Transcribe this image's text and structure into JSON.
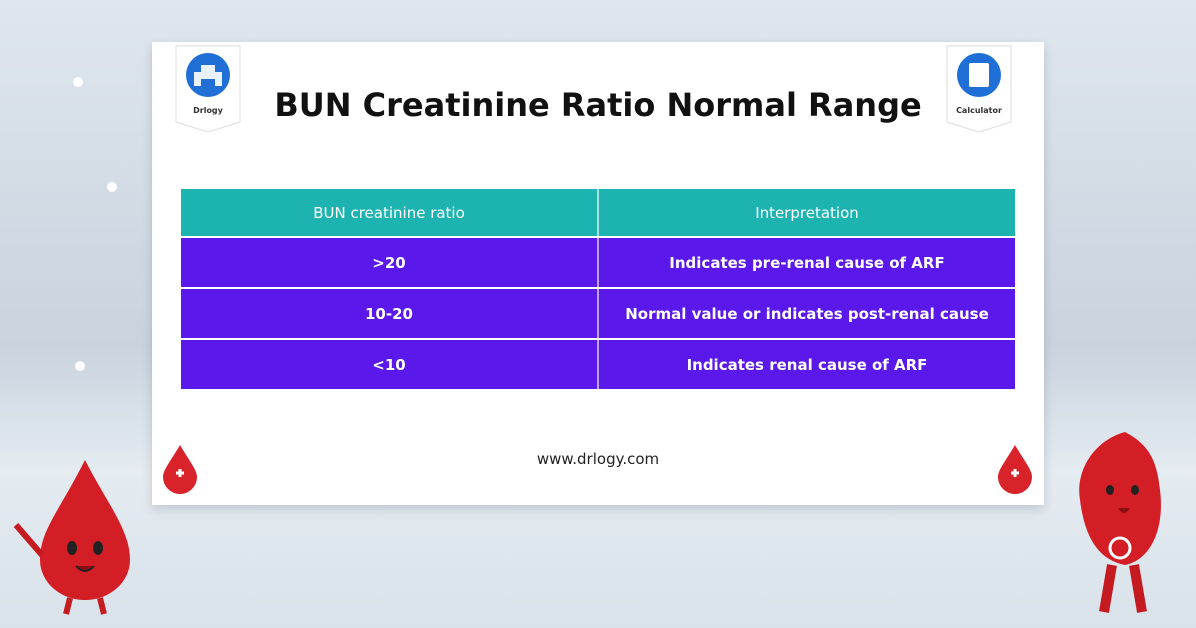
{
  "header": {
    "title": "BUN Creatinine Ratio Normal Range",
    "left_badge": "Drlogy",
    "right_badge": "Calculator"
  },
  "table": {
    "columns": [
      "BUN creatinine ratio",
      "Interpretation"
    ],
    "rows": [
      [
        ">20",
        "Indicates pre-renal cause of ARF"
      ],
      [
        "10-20",
        "Normal value or indicates post-renal cause"
      ],
      [
        "<10",
        "Indicates renal cause of ARF"
      ]
    ]
  },
  "footer": {
    "url": "www.drlogy.com"
  }
}
